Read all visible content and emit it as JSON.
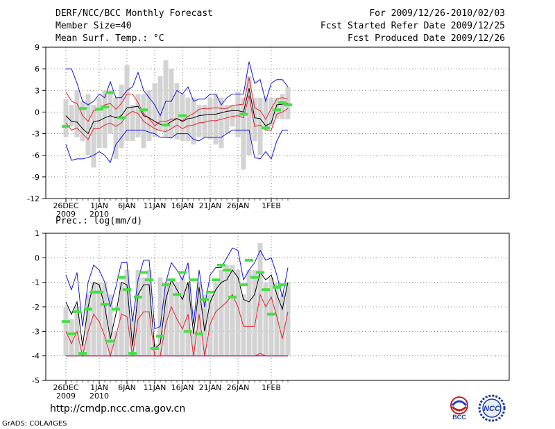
{
  "header": {
    "left": [
      "DERF/NCC/BCC Monthly Forecast",
      "Member Size=40",
      "Mean Surf. Temp.: °C"
    ],
    "right": [
      "For 2009/12/26-2010/02/03",
      "Fcst Started Refer Date 2009/12/25",
      "Fcst Produced Date 2009/12/26"
    ]
  },
  "footer": {
    "url": "http://cmdp.ncc.cma.gov.cn",
    "credit": "GrADS: COLA/IGES",
    "logo_bcc": "BCC",
    "logo_ncc": "NCC"
  },
  "colors": {
    "box": "#d3d3d3",
    "median": "#000000",
    "red": "#e8202a",
    "blue": "#1414d8",
    "obs": "#44e044",
    "grid": "#606060"
  },
  "chart_data": [
    {
      "type": "box-ensemble",
      "title": "Mean Surf. Temp.: °C",
      "ylim": [
        -12,
        9
      ],
      "yticks": [
        -12,
        -9,
        -6,
        -3,
        0,
        3,
        6,
        9
      ],
      "xticks": [
        {
          "day": 0,
          "label": "26DEC",
          "sub": "2009"
        },
        {
          "day": 6,
          "label": "1JAN",
          "sub": "2010"
        },
        {
          "day": 11,
          "label": "6JAN",
          "sub": ""
        },
        {
          "day": 16,
          "label": "11JAN",
          "sub": ""
        },
        {
          "day": 21,
          "label": "16JAN",
          "sub": ""
        },
        {
          "day": 26,
          "label": "21JAN",
          "sub": ""
        },
        {
          "day": 31,
          "label": "26JAN",
          "sub": ""
        },
        {
          "day": 37,
          "label": "1FEB",
          "sub": ""
        }
      ],
      "box_low": [
        -3.5,
        -2,
        -3.5,
        -4,
        -6,
        -7.7,
        -5,
        -5,
        -3,
        -6.5,
        -5,
        -4,
        -4,
        -3.5,
        -5,
        -4,
        -3.5,
        -2.5,
        -3.5,
        -3.5,
        -3.8,
        -4,
        -4,
        -4.5,
        -3.5,
        -3.5,
        -3.8,
        -4.5,
        -5,
        -3,
        -2,
        -3.5,
        -8,
        -6,
        -4,
        -6,
        -2.5,
        -2,
        -1,
        -1,
        -1
      ],
      "box_high": [
        1.8,
        1,
        3,
        1.5,
        2.5,
        1,
        2,
        3,
        3,
        2,
        3.8,
        6.5,
        1,
        2.5,
        2.5,
        3,
        4,
        5,
        7.2,
        6,
        4,
        2.5,
        2,
        2,
        1,
        1,
        2,
        2.5,
        2,
        1,
        1,
        2.8,
        2,
        5,
        2,
        2,
        2,
        2,
        2,
        2.5,
        3.5
      ],
      "median": [
        -0.5,
        -1.3,
        -1.4,
        -2.3,
        -3,
        -1.3,
        -1.2,
        -0.8,
        -0.5,
        -0.8,
        -0.5,
        0.6,
        0.7,
        0.8,
        -0.5,
        -0.8,
        -1.3,
        -1.7,
        -1.8,
        -1.3,
        -0.9,
        -1.3,
        -0.9,
        -0.8,
        -0.5,
        -0.4,
        -0.3,
        -0.3,
        -0.1,
        0.1,
        0.2,
        0.2,
        0.0,
        3.3,
        -0.8,
        -0.9,
        -1.9,
        -1.5,
        1.0,
        1.1,
        1.2
      ],
      "red_upper": [
        2.8,
        1.5,
        1.2,
        -0.5,
        -1.3,
        0.2,
        0.3,
        1.0,
        1.2,
        0.4,
        1.2,
        2.5,
        2.5,
        1.3,
        -0.2,
        -0.9,
        -1.9,
        -1.3,
        -1.3,
        -1.0,
        -0.9,
        -1.2,
        -0.6,
        -0.2,
        0.4,
        0.5,
        0.5,
        0.6,
        0.5,
        0.5,
        0.9,
        1.0,
        1.1,
        4.8,
        0.6,
        0.2,
        -1.0,
        0.5,
        1.8,
        2.0,
        1.8
      ],
      "red_lower": [
        -1.5,
        -2.5,
        -2.2,
        -3.0,
        -3.8,
        -2.3,
        -2.3,
        -1.8,
        -1.5,
        -2.0,
        -1.5,
        -0.4,
        0.1,
        -0.2,
        -1.3,
        -1.8,
        -2.3,
        -2.6,
        -2.7,
        -2.3,
        -1.8,
        -2.3,
        -1.9,
        -1.8,
        -1.5,
        -1.4,
        -1.2,
        -1.2,
        -1.0,
        -0.8,
        -0.6,
        -0.5,
        -0.8,
        2.3,
        -2.0,
        -1.8,
        -2.5,
        -2.5,
        -0.3,
        0.0,
        0.5
      ],
      "blue_upper": [
        6.0,
        6.0,
        4.0,
        1.5,
        1.0,
        1.5,
        2.5,
        2.0,
        4.2,
        2.0,
        2.0,
        3.0,
        3.5,
        5.5,
        3.0,
        2.0,
        1.0,
        -0.5,
        1.5,
        1.5,
        3.0,
        2.5,
        3.5,
        1.5,
        1.8,
        1.8,
        2.5,
        2.5,
        1.0,
        2.0,
        2.5,
        2.5,
        2.5,
        7.0,
        4.0,
        4.5,
        1.5,
        4.0,
        4.5,
        4.5,
        3.5
      ],
      "blue_lower": [
        -4.5,
        -6.7,
        -6.5,
        -6.5,
        -6.3,
        -6.0,
        -5.5,
        -6.0,
        -7.0,
        -4.5,
        -3.5,
        -2.5,
        -2.5,
        -2.5,
        -2.5,
        -2.8,
        -3.0,
        -3.5,
        -3.5,
        -3.6,
        -3.0,
        -3.0,
        -3.0,
        -3.8,
        -4.0,
        -3.5,
        -3.5,
        -3.5,
        -3.5,
        -3.0,
        -2.5,
        -2.5,
        -2.5,
        -2.5,
        -6.3,
        -6.5,
        -5.5,
        -6.5,
        -4.0,
        -2.5,
        -2.5
      ],
      "observed": {
        "0": -2.0,
        "3": 0.5,
        "6": 0.4,
        "7": 0.7,
        "8": 2.7,
        "10": -0.8,
        "14": 0.3,
        "18": -1.8,
        "21": -0.5,
        "32": -0.3,
        "36": -2.2,
        "38": 0.3,
        "39": 1.3,
        "40": 1.0
      }
    },
    {
      "type": "box-ensemble",
      "title": "Prec.: log(mm/d)",
      "ylim": [
        -5,
        1
      ],
      "yticks": [
        -5,
        -4,
        -3,
        -2,
        -1,
        0,
        1
      ],
      "xticks": [
        {
          "day": 0,
          "label": "26DEC",
          "sub": "2009"
        },
        {
          "day": 6,
          "label": "1JAN",
          "sub": "2010"
        },
        {
          "day": 11,
          "label": "6JAN",
          "sub": ""
        },
        {
          "day": 16,
          "label": "11JAN",
          "sub": ""
        },
        {
          "day": 21,
          "label": "16JAN",
          "sub": ""
        },
        {
          "day": 26,
          "label": "21JAN",
          "sub": ""
        },
        {
          "day": 31,
          "label": "26JAN",
          "sub": ""
        },
        {
          "day": 37,
          "label": "1FEB",
          "sub": ""
        }
      ],
      "box_low": [
        -4.0,
        -4.0,
        -4.0,
        -4.0,
        -4.0,
        -4.0,
        -4.0,
        -4.0,
        -4.0,
        -4.0,
        -4.0,
        -4.0,
        -4.0,
        -4.0,
        -4.0,
        -4.0,
        -4.0,
        -4.0,
        -4.0,
        -4.0,
        -4.0,
        -4.0,
        -4.0,
        -4.0,
        -4.0,
        -4.0,
        -4.0,
        -4.0,
        -4.0,
        -4.0,
        -4.0,
        -4.0,
        -4.0,
        -4.0,
        -4.0,
        -4.0,
        -4.0,
        -4.0,
        -4.0,
        -4.0,
        -4.0
      ],
      "box_high": [
        -2.0,
        -2.5,
        -2.0,
        -3.5,
        -1.5,
        -1.0,
        -1.0,
        -1.0,
        -1.5,
        -3.0,
        -1.0,
        -0.5,
        -2.5,
        -0.5,
        -0.8,
        -0.5,
        -3.5,
        -0.8,
        -1.0,
        -1.0,
        -1.0,
        -0.8,
        -1.0,
        -3.0,
        -1.0,
        -1.5,
        -1.5,
        -1.0,
        -0.5,
        -0.3,
        -0.3,
        -0.5,
        -1.5,
        -0.5,
        -0.5,
        0.6,
        -1.0,
        -0.8,
        -1.0,
        -1.5,
        -1.0
      ],
      "median": [
        -1.8,
        -2.3,
        -1.8,
        -3.6,
        -2.0,
        -1.0,
        -1.1,
        -2.0,
        -3.3,
        -2.3,
        -1.0,
        -1.1,
        -3.6,
        -1.5,
        -1.1,
        -1.1,
        -3.7,
        -3.5,
        -1.7,
        -0.9,
        -1.3,
        -1.7,
        -1.0,
        -3.1,
        -1.2,
        -3.0,
        -1.8,
        -1.3,
        -1.0,
        -0.9,
        -0.5,
        -0.8,
        -1.7,
        -1.8,
        -1.5,
        -0.6,
        -0.9,
        -0.7,
        -1.5,
        -2.1,
        -1.0
      ],
      "red_upper": [
        -3.0,
        -3.5,
        -3.0,
        -4.0,
        -3.0,
        -2.3,
        -2.6,
        -3.2,
        -4.0,
        -3.2,
        -2.3,
        -2.4,
        -4.0,
        -2.5,
        -2.2,
        -2.2,
        -4.0,
        -4.0,
        -2.7,
        -2.0,
        -2.5,
        -2.9,
        -2.3,
        -4.0,
        -2.3,
        -4.0,
        -2.7,
        -2.2,
        -2.0,
        -1.8,
        -1.5,
        -2.0,
        -2.8,
        -2.8,
        -2.8,
        -1.5,
        -2.0,
        -1.6,
        -2.4,
        -3.3,
        -2.2
      ],
      "red_lower": [
        -4.0,
        -4.0,
        -4.0,
        -4.0,
        -4.0,
        -4.0,
        -4.0,
        -4.0,
        -4.0,
        -4.0,
        -4.0,
        -4.0,
        -4.0,
        -4.0,
        -4.0,
        -4.0,
        -4.0,
        -4.0,
        -4.0,
        -4.0,
        -4.0,
        -4.0,
        -4.0,
        -4.0,
        -4.0,
        -4.0,
        -4.0,
        -4.0,
        -4.0,
        -4.0,
        -4.0,
        -4.0,
        -4.0,
        -4.0,
        -4.0,
        -3.9,
        -4.0,
        -4.0,
        -4.0,
        -4.0,
        -4.0
      ],
      "blue_upper": [
        -0.7,
        -1.3,
        -0.6,
        -2.8,
        -1.0,
        -0.3,
        -0.5,
        -1.0,
        -2.0,
        -1.2,
        -0.2,
        -0.2,
        -2.6,
        -0.9,
        -0.1,
        -0.1,
        -2.9,
        -2.8,
        -1.0,
        -0.2,
        -0.5,
        -0.9,
        -0.2,
        -2.7,
        -0.5,
        -2.0,
        -0.7,
        -0.4,
        -0.4,
        0.0,
        0.4,
        0.3,
        -0.9,
        -0.5,
        -0.2,
        0.3,
        -0.1,
        0.0,
        -0.7,
        -1.6,
        -0.4
      ],
      "blue_lower": [
        -4.0,
        -4.0,
        -4.0,
        -4.0,
        -4.0,
        -4.0,
        -4.0,
        -4.0,
        -4.0,
        -4.0,
        -4.0,
        -4.0,
        -4.0,
        -4.0,
        -4.0,
        -4.0,
        -4.0,
        -4.0,
        -4.0,
        -4.0,
        -4.0,
        -4.0,
        -4.0,
        -4.0,
        -4.0,
        -4.0,
        -4.0,
        -4.0,
        -4.0,
        -4.0,
        -4.0,
        -4.0,
        -4.0,
        -4.0,
        -4.0,
        -4.0,
        -4.0,
        -4.0,
        -4.0,
        -4.0,
        -4.0
      ],
      "observed": {
        "0": -2.6,
        "1": -3.1,
        "2": -2.2,
        "3": -3.9,
        "4": -2.1,
        "5": -1.4,
        "6": -1.4,
        "7": -1.9,
        "8": -3.4,
        "9": -2.1,
        "10": -0.8,
        "11": -1.3,
        "12": -3.9,
        "13": -1.6,
        "14": -0.6,
        "15": -0.9,
        "16": -3.7,
        "17": -3.2,
        "18": -1.1,
        "19": -0.9,
        "20": -1.5,
        "21": -0.6,
        "22": -3.0,
        "23": -0.9,
        "24": -3.1,
        "25": -1.7,
        "26": -1.4,
        "27": -0.9,
        "28": -0.3,
        "29": -0.5,
        "30": -1.6,
        "32": -1.1,
        "33": -0.1,
        "34": -0.8,
        "35": -0.6,
        "36": -1.3,
        "37": -2.3,
        "38": -1.2,
        "39": -1.1
      }
    }
  ]
}
